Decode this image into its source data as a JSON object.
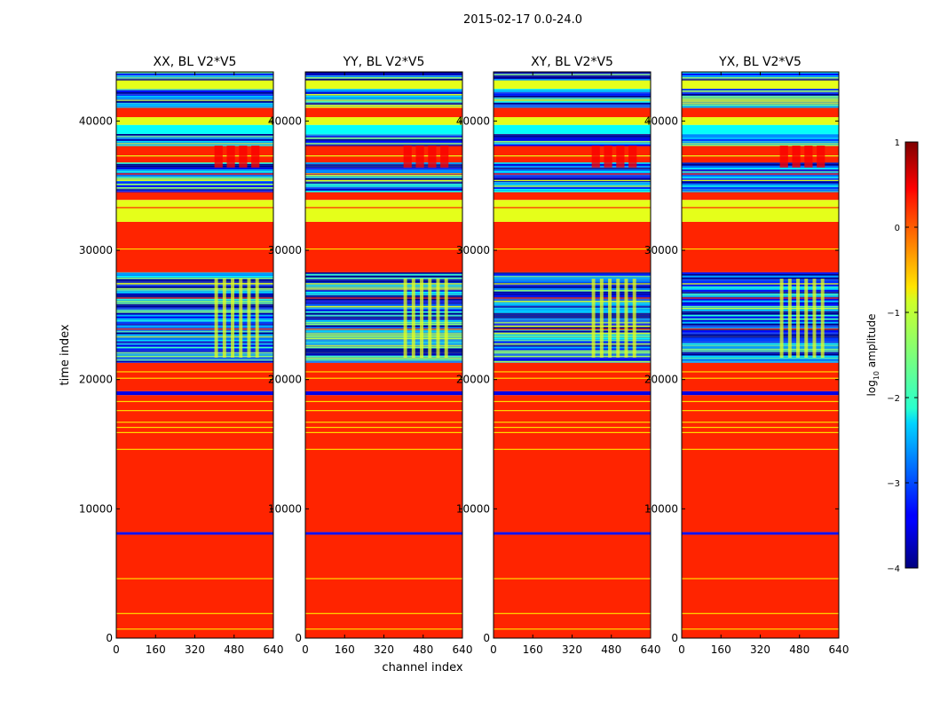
{
  "figure": {
    "suptitle": "2015-02-17 0.0-24.0"
  },
  "chart_data": {
    "type": "heatmap",
    "title": "2015-02-17 0.0-24.0",
    "xlabel": "channel index",
    "ylabel": "time index",
    "xlim": [
      0,
      640
    ],
    "ylim": [
      0,
      43800
    ],
    "xticks": [
      "0",
      "160",
      "320",
      "480",
      "640"
    ],
    "yticks": [
      "0",
      "10000",
      "20000",
      "30000",
      "40000"
    ],
    "colorbar": {
      "label": "log10 amplitude",
      "label_main": "log",
      "label_sub": "10",
      "label_rest": " amplitude",
      "range": [
        -4,
        1
      ],
      "ticks": [
        "1",
        "0",
        "−1",
        "−2",
        "−3",
        "−4"
      ],
      "colormap": "jet"
    },
    "panels": [
      {
        "title": "XX, BL V2*V5"
      },
      {
        "title": "YY, BL V2*V5"
      },
      {
        "title": "XY, BL V2*V5"
      },
      {
        "title": "YX, BL V2*V5"
      }
    ],
    "bands": [
      {
        "t0": 0,
        "t1": 8000,
        "level": 0.2
      },
      {
        "t0": 8000,
        "t1": 8200,
        "level": -3.3
      },
      {
        "t0": 8200,
        "t1": 18800,
        "level": 0.2
      },
      {
        "t0": 18800,
        "t1": 19100,
        "level": -3.5
      },
      {
        "t0": 19100,
        "t1": 21300,
        "level": 0.2
      },
      {
        "t0": 21300,
        "t1": 28300,
        "level": -3.0,
        "noisy": true
      },
      {
        "t0": 28300,
        "t1": 32200,
        "level": 0.2
      },
      {
        "t0": 32200,
        "t1": 33900,
        "level": -1.0
      },
      {
        "t0": 33900,
        "t1": 34600,
        "level": 0.2
      },
      {
        "t0": 34600,
        "t1": 36800,
        "level": -3.0,
        "noisy": true
      },
      {
        "t0": 36800,
        "t1": 38100,
        "level": 0.2
      },
      {
        "t0": 38100,
        "t1": 39000,
        "level": -3.0,
        "noisy": true
      },
      {
        "t0": 39000,
        "t1": 39700,
        "level": -2.1
      },
      {
        "t0": 39700,
        "t1": 40300,
        "level": -1.0
      },
      {
        "t0": 40300,
        "t1": 41100,
        "level": 0.2
      },
      {
        "t0": 41100,
        "t1": 42500,
        "level": -3.0,
        "noisy": true
      },
      {
        "t0": 42500,
        "t1": 43200,
        "level": -1.0
      },
      {
        "t0": 43200,
        "t1": 43800,
        "level": -3.2,
        "noisy": true
      }
    ],
    "thin_lines": [
      {
        "t": 700,
        "level": -0.7
      },
      {
        "t": 1900,
        "level": -0.7
      },
      {
        "t": 4600,
        "level": -0.7
      },
      {
        "t": 14600,
        "level": -0.7
      },
      {
        "t": 15900,
        "level": -0.7
      },
      {
        "t": 16300,
        "level": -0.7
      },
      {
        "t": 16700,
        "level": -0.7
      },
      {
        "t": 17600,
        "level": -0.7
      },
      {
        "t": 18300,
        "level": -0.7
      },
      {
        "t": 20100,
        "level": -0.7
      },
      {
        "t": 20600,
        "level": -0.7
      },
      {
        "t": 30100,
        "level": -0.7
      },
      {
        "t": 23900,
        "level": 0.2
      },
      {
        "t": 26300,
        "level": 0.2
      },
      {
        "t": 27400,
        "level": -1.0
      },
      {
        "t": 33300,
        "level": 0.2
      },
      {
        "t": 35400,
        "level": -1.0
      },
      {
        "t": 35900,
        "level": 0.2
      },
      {
        "t": 37300,
        "level": -1.0
      },
      {
        "t": 41600,
        "level": -1.0
      }
    ],
    "highlight_block": {
      "c0": 400,
      "c1": 600,
      "t0": 21700,
      "t1": 27800,
      "level": -1.0
    },
    "highlight_block_upper": {
      "c0": 400,
      "c1": 600,
      "t0": 36400,
      "t1": 38100,
      "level": 0.4
    }
  }
}
